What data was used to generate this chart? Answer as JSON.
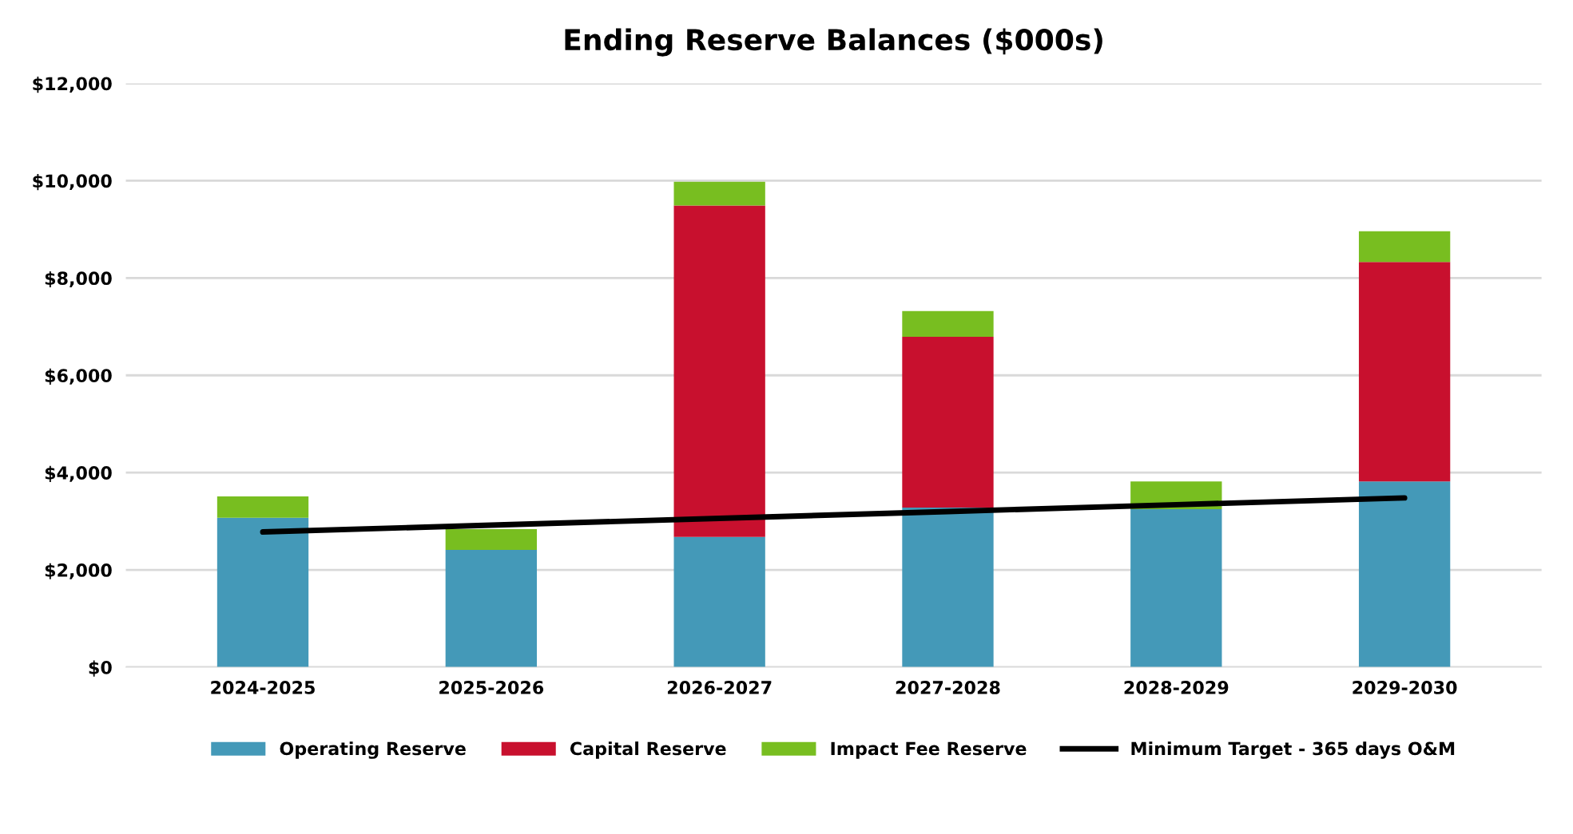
{
  "chart_data": {
    "type": "bar",
    "title": "Ending Reserve Balances ($000s)",
    "stacked": true,
    "categories": [
      "2024-2025",
      "2025-2026",
      "2026-2027",
      "2027-2028",
      "2028-2029",
      "2029-2030"
    ],
    "series": [
      {
        "name": "Operating Reserve",
        "color": "#4499b8",
        "values": [
          3070,
          2410,
          2680,
          3280,
          3250,
          3820
        ]
      },
      {
        "name": "Capital Reserve",
        "color": "#c8102e",
        "values": [
          0,
          0,
          6810,
          3510,
          0,
          4510
        ]
      },
      {
        "name": "Impact Fee Reserve",
        "color": "#78be20",
        "values": [
          440,
          430,
          490,
          530,
          570,
          630
        ]
      },
      {
        "name": "Minimum Target - 365 days O&M",
        "type": "line",
        "color": "#000000",
        "values": [
          2780,
          2920,
          3060,
          3200,
          3340,
          3480
        ]
      }
    ],
    "ylim": [
      0,
      12000
    ],
    "yticks": [
      {
        "value": 0,
        "label": "$0"
      },
      {
        "value": 2000,
        "label": "$2,000"
      },
      {
        "value": 4000,
        "label": "$4,000"
      },
      {
        "value": 6000,
        "label": "$6,000"
      },
      {
        "value": 8000,
        "label": "$8,000"
      },
      {
        "value": 10000,
        "label": "$10,000"
      },
      {
        "value": 12000,
        "label": "$12,000"
      }
    ],
    "grid": "y",
    "legend": "bottom"
  }
}
